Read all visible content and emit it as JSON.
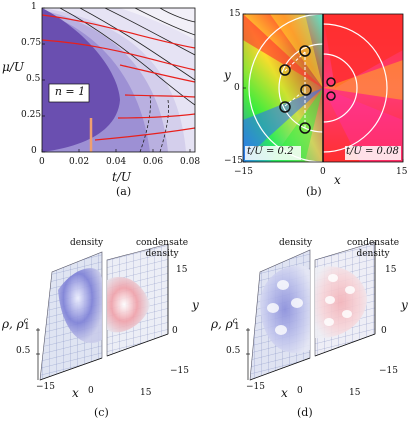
{
  "panel_a": {
    "caption": "(a)",
    "ylabel": "μ/U",
    "xlabel": "t/U",
    "region_label": "n = 1",
    "x_ticks": [
      "0",
      "0.02",
      "0.04",
      "0.06",
      "0.08"
    ],
    "y_ticks": [
      "0",
      "0.25",
      "0.5",
      "0.75",
      "1"
    ],
    "colors": {
      "mott": "#6a4fb0",
      "fill1": "#8f7fcc",
      "fill2": "#b7aedf",
      "fill3": "#d8d4ee",
      "contour": "#e8201c",
      "marker": "#f0a070"
    }
  },
  "panel_b": {
    "caption": "(b)",
    "ylabel": "y",
    "xlabel": "x",
    "x_ticks": [
      "−15",
      "0",
      "15"
    ],
    "y_ticks": [
      "15",
      "0",
      "−15"
    ],
    "left_label": "t/U = 0.2",
    "right_label": "t/U = 0.08"
  },
  "panel_c": {
    "caption": "(c)",
    "title_left": "density",
    "title_right": "condensate density",
    "zlabel": "ρ, ρ",
    "zlabel_sup": "c",
    "z_ticks": [
      "1",
      "0.5"
    ],
    "x_label": "x",
    "y_label": "y",
    "x_ticks": [
      "−15",
      "0",
      "15"
    ],
    "y_ticks": [
      "15",
      "0",
      "−15"
    ]
  },
  "panel_d": {
    "caption": "(d)",
    "title_left": "density",
    "title_right": "condensate density",
    "zlabel": "ρ, ρ",
    "zlabel_sup": "c",
    "z_ticks": [
      "1",
      "0.5"
    ],
    "x_label": "x",
    "y_label": "y",
    "x_ticks": [
      "−15",
      "0",
      "15"
    ],
    "y_ticks": [
      "15",
      "0",
      "−15"
    ]
  }
}
